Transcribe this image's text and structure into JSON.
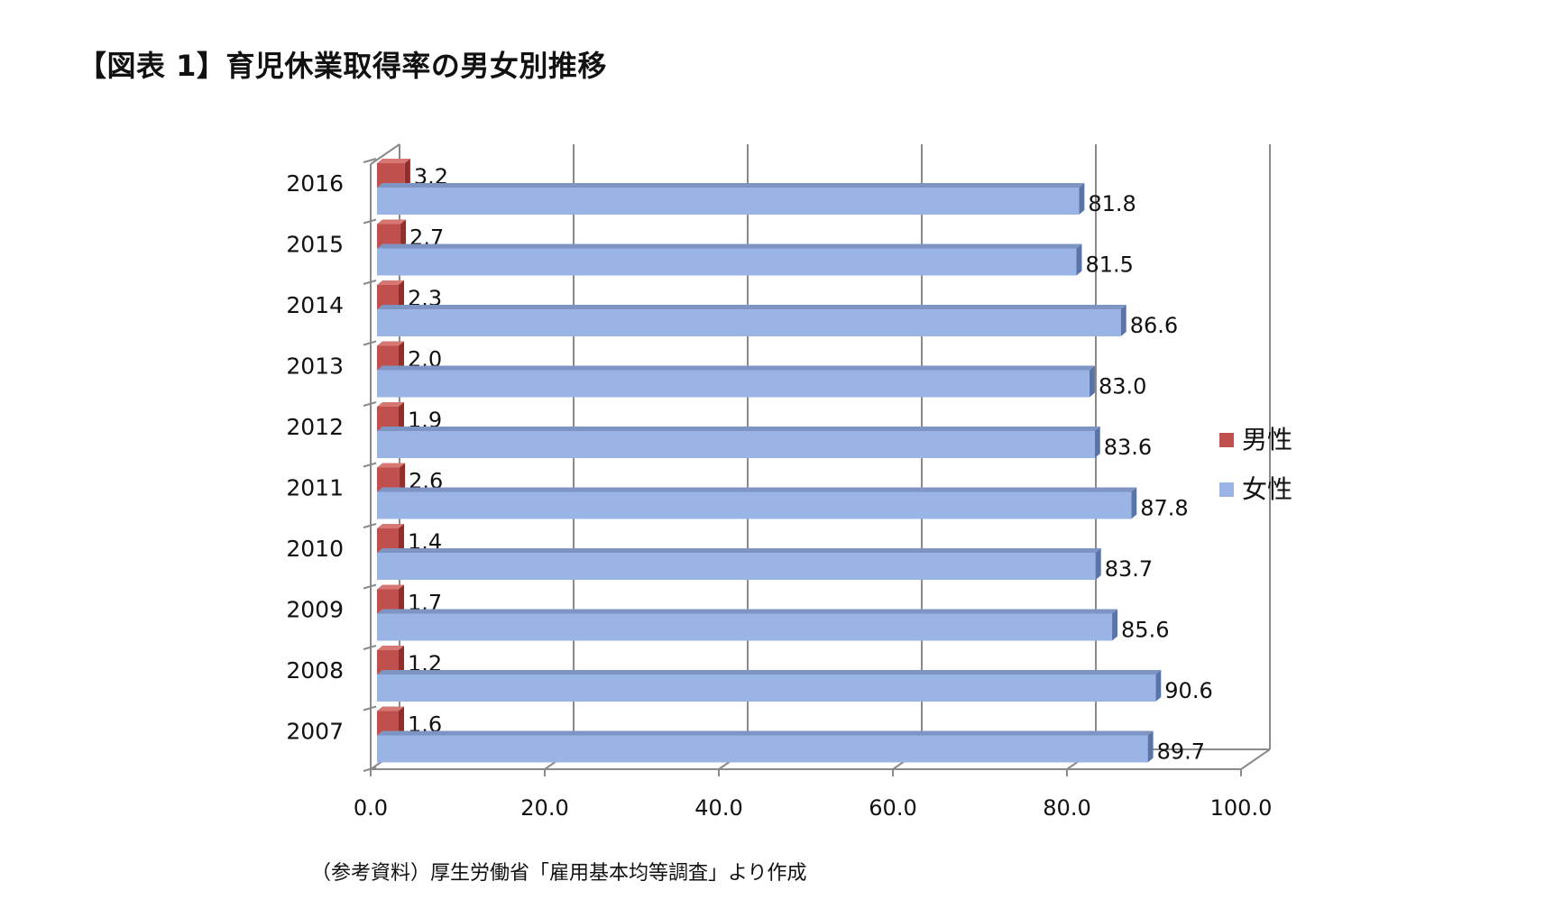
{
  "title": "【図表 1】育児休業取得率の男女別推移",
  "source": "（参考資料）厚生労働省「雇用基本均等調査」より作成",
  "chart_data": {
    "type": "bar",
    "orientation": "horizontal",
    "categories": [
      "2016",
      "2015",
      "2014",
      "2013",
      "2012",
      "2011",
      "2010",
      "2009",
      "2008",
      "2007"
    ],
    "series": [
      {
        "name": "男性",
        "color": "#c0504d",
        "values": [
          3.2,
          2.7,
          2.3,
          2.0,
          1.9,
          2.6,
          1.4,
          1.7,
          1.2,
          1.6
        ]
      },
      {
        "name": "女性",
        "color": "#9bb4e6",
        "values": [
          81.8,
          81.5,
          86.6,
          83.0,
          83.6,
          87.8,
          83.7,
          85.6,
          90.6,
          89.7
        ]
      }
    ],
    "x_ticks": [
      "0.0",
      "20.0",
      "40.0",
      "60.0",
      "80.0",
      "100.0"
    ],
    "xlim": [
      0,
      100
    ],
    "grid": true,
    "legend_position": "right",
    "data_labels": [
      "3.2",
      "2.7",
      "2.3",
      "2.0",
      "1.9",
      "2.6",
      "1.4",
      "1.7",
      "1.2",
      "1.6",
      "81.8",
      "81.5",
      "86.6",
      "83.0",
      "83.6",
      "87.8",
      "83.7",
      "85.6",
      "90.6",
      "89.7"
    ],
    "style": "3d"
  }
}
